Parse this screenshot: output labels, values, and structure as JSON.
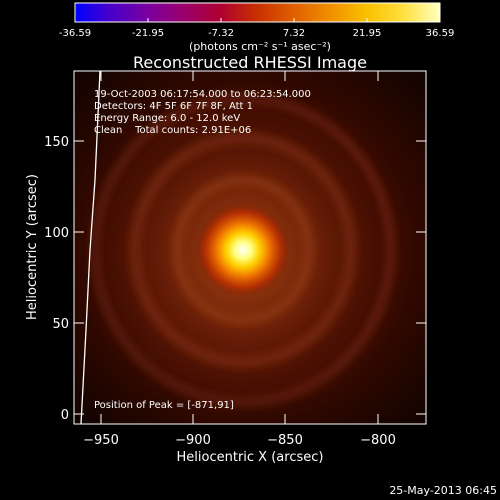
{
  "colorbar": {
    "tick_labels": [
      "-36.59",
      "-21.95",
      "-7.32",
      "7.32",
      "21.95",
      "36.59"
    ],
    "units": "(photons cm⁻² s⁻¹ asec⁻²)",
    "colormap": [
      "#0000ff",
      "#4a00c8",
      "#7a00a0",
      "#9a006a",
      "#b00030",
      "#c83000",
      "#e06000",
      "#f09000",
      "#fac000",
      "#ffe040",
      "#ffffc0"
    ]
  },
  "plot": {
    "title": "Reconstructed RHESSI Image",
    "xlabel": "Heliocentric X (arcsec)",
    "ylabel": "Heliocentric Y (arcsec)",
    "x_ticks": [
      "−950",
      "−900",
      "−850",
      "−800"
    ],
    "y_ticks": [
      "0",
      "50",
      "100",
      "150"
    ],
    "info_lines": [
      "19-Oct-2003 06:17:54.000 to 06:23:54.000",
      "Detectors: 4F 5F 6F 7F 8F, Att 1",
      "Energy Range: 6.0 - 12.0 keV",
      "Clean    Total counts: 2.91E+06"
    ],
    "peak_label": "Position of Peak = [-871,91]",
    "peak_position_arcsec": [
      -871,
      91
    ]
  },
  "footer": {
    "date": "25-May-2013 06:45"
  }
}
